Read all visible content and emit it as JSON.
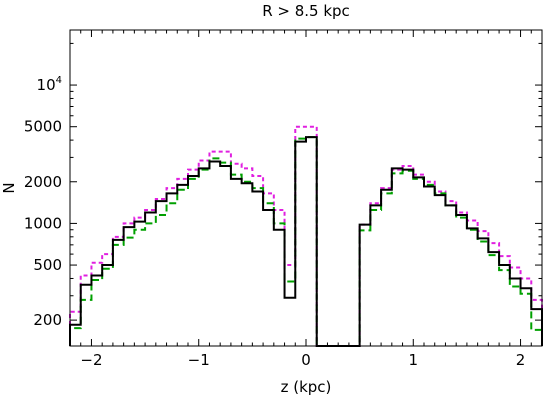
{
  "chart_data": {
    "type": "step",
    "title": "R > 8.5 kpc",
    "xlabel": "z (kpc)",
    "ylabel": "N",
    "xlim": [
      -2.2,
      2.2
    ],
    "ylim": [
      130,
      25000
    ],
    "yscale": "log",
    "xticks": [
      {
        "value": -2,
        "label": "−2"
      },
      {
        "value": -1,
        "label": "−1"
      },
      {
        "value": 0,
        "label": "0"
      },
      {
        "value": 1,
        "label": "1"
      },
      {
        "value": 2,
        "label": "2"
      }
    ],
    "yticks": [
      {
        "value": 200,
        "label": "200"
      },
      {
        "value": 500,
        "label": "500"
      },
      {
        "value": 1000,
        "label": "1000"
      },
      {
        "value": 2000,
        "label": "2000"
      },
      {
        "value": 5000,
        "label": "5000"
      },
      {
        "value": 10000,
        "label": "10^4"
      }
    ],
    "bin_edges": [
      -2.2,
      -2.1,
      -2.0,
      -1.9,
      -1.8,
      -1.7,
      -1.6,
      -1.5,
      -1.4,
      -1.3,
      -1.2,
      -1.1,
      -1.0,
      -0.9,
      -0.8,
      -0.7,
      -0.6,
      -0.5,
      -0.4,
      -0.3,
      -0.2,
      -0.1,
      0.0,
      0.1,
      0.2,
      0.3,
      0.4,
      0.5,
      0.6,
      0.7,
      0.8,
      0.9,
      1.0,
      1.1,
      1.2,
      1.3,
      1.4,
      1.5,
      1.6,
      1.7,
      1.8,
      1.9,
      2.0,
      2.1,
      2.2
    ],
    "series": [
      {
        "color": "#000000",
        "dash": "",
        "values": [
          185,
          360,
          420,
          500,
          760,
          940,
          1030,
          1200,
          1450,
          1650,
          1900,
          2200,
          2500,
          2800,
          2600,
          2100,
          1950,
          1700,
          1250,
          900,
          290,
          3900,
          4200,
          null,
          null,
          null,
          null,
          980,
          1350,
          1750,
          2500,
          2450,
          2150,
          1850,
          1600,
          1350,
          1150,
          920,
          780,
          620,
          500,
          400,
          340,
          240
        ]
      },
      {
        "color": "#00a000",
        "dash": "7,4",
        "values": [
          175,
          280,
          390,
          470,
          700,
          790,
          900,
          1000,
          1150,
          1400,
          1750,
          2100,
          2450,
          2950,
          2750,
          2250,
          2000,
          1800,
          1400,
          1000,
          380,
          4100,
          4200,
          null,
          null,
          null,
          null,
          890,
          1250,
          1650,
          2300,
          2400,
          2100,
          1900,
          1650,
          1350,
          1100,
          900,
          740,
          590,
          460,
          350,
          310,
          170
        ]
      },
      {
        "color": "#e020e0",
        "dash": "4,3",
        "values": [
          230,
          420,
          520,
          600,
          800,
          1000,
          1100,
          1250,
          1500,
          1800,
          2100,
          2450,
          2850,
          3300,
          3300,
          2700,
          2500,
          2200,
          1650,
          1250,
          500,
          5000,
          5000,
          null,
          null,
          null,
          null,
          980,
          1400,
          1800,
          2450,
          2600,
          2250,
          2000,
          1700,
          1450,
          1200,
          1050,
          880,
          720,
          580,
          480,
          400,
          280
        ]
      }
    ]
  }
}
